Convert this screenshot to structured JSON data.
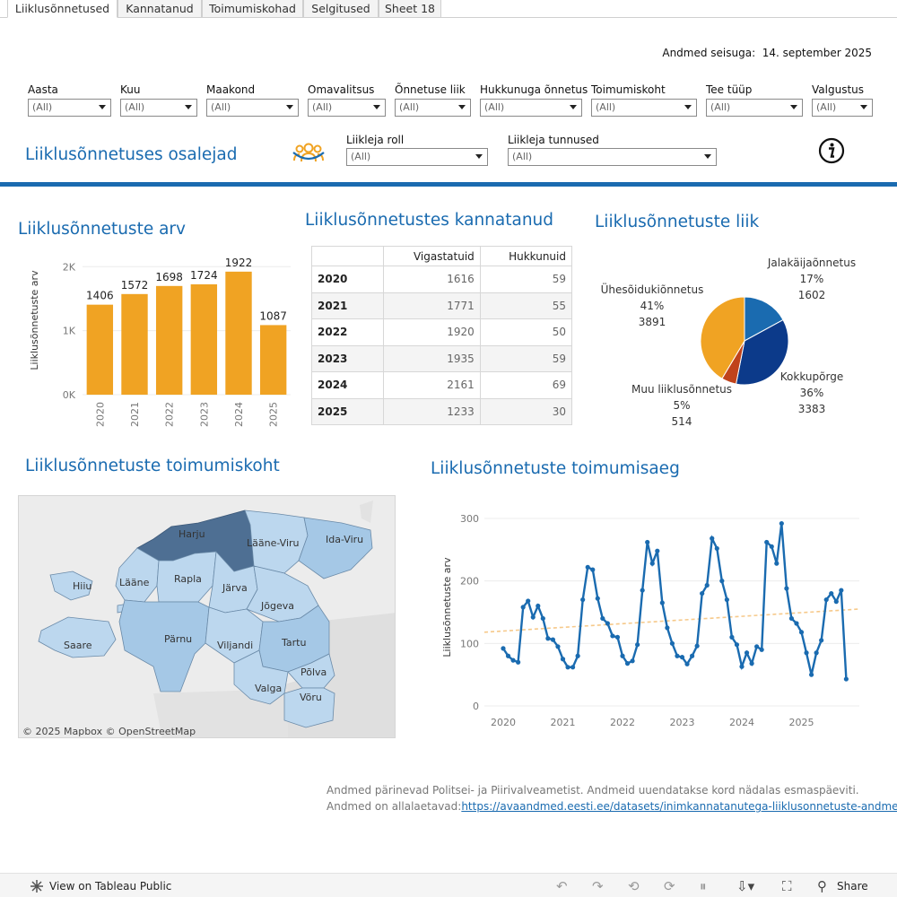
{
  "tabs": [
    "Liiklusõnnetused",
    "Kannatanud",
    "Toimumiskohad",
    "Selgitused",
    "Sheet 18"
  ],
  "stamp": {
    "label": "Andmed seisuga:",
    "date": "14. september 2025"
  },
  "filters": [
    {
      "label": "Aasta",
      "value": "(All)"
    },
    {
      "label": "Kuu",
      "value": "(All)"
    },
    {
      "label": "Maakond",
      "value": "(All)"
    },
    {
      "label": "Omavalitsus",
      "value": "(All)"
    },
    {
      "label": "Õnnetuse liik",
      "value": "(All)"
    },
    {
      "label": "Hukkunuga õnnetus",
      "value": "(All)"
    },
    {
      "label": "Toimumiskoht",
      "value": "(All)"
    },
    {
      "label": "Tee tüüp",
      "value": "(All)"
    },
    {
      "label": "Valgustus",
      "value": "(All)"
    }
  ],
  "participants": {
    "title": "Liiklusõnnetuses osalejad",
    "icon": "people-group-icon",
    "filters": [
      {
        "label": "Liikleja roll",
        "value": "(All)"
      },
      {
        "label": "Liikleja tunnused",
        "value": "(All)"
      }
    ],
    "info_icon": "info-icon"
  },
  "count_chart": {
    "title": "Liiklusõnnetuste arv",
    "chart_data": {
      "type": "bar",
      "categories": [
        "2020",
        "2021",
        "2022",
        "2023",
        "2024",
        "2025"
      ],
      "values": [
        1406,
        1572,
        1698,
        1724,
        1922,
        1087
      ],
      "data_labels": [
        "1406",
        "1572",
        "1698",
        "1724",
        "1922",
        "1087"
      ],
      "ylabel": "Liiklusõnnetuste arv",
      "yticks": [
        "0K",
        "1K",
        "2K"
      ],
      "ylim": [
        0,
        2200
      ],
      "color": "#f0a323"
    }
  },
  "victims": {
    "title": "Liiklusõnnetustes kannatanud",
    "columns": [
      "Vigastatuid",
      "Hukkunuid"
    ],
    "rows": [
      {
        "year": "2020",
        "injured": "1616",
        "killed": "59"
      },
      {
        "year": "2021",
        "injured": "1771",
        "killed": "55"
      },
      {
        "year": "2022",
        "injured": "1920",
        "killed": "50"
      },
      {
        "year": "2023",
        "injured": "1935",
        "killed": "59"
      },
      {
        "year": "2024",
        "injured": "2161",
        "killed": "69"
      },
      {
        "year": "2025",
        "injured": "1233",
        "killed": "30"
      }
    ]
  },
  "type_chart": {
    "title": "Liiklusõnnetuste liik",
    "chart_data": {
      "type": "pie",
      "slices": [
        {
          "name": "Jalakäijaõnnetus",
          "pct": "17%",
          "value": 1602,
          "color": "#1a6bb0"
        },
        {
          "name": "Kokkupõrge",
          "pct": "36%",
          "value": 3383,
          "color": "#0c3a8a"
        },
        {
          "name": "Muu liiklusõnnetus",
          "pct": "5%",
          "value": 514,
          "color": "#c0431b"
        },
        {
          "name": "Ühesõidukiõnnetus",
          "pct": "41%",
          "value": 3891,
          "color": "#f0a323"
        }
      ]
    }
  },
  "map": {
    "title": "Liiklusõnnetuste toimumiskoht",
    "regions": [
      "Harju",
      "Lääne-Viru",
      "Ida-Viru",
      "Hiiu",
      "Lääne",
      "Rapla",
      "Järva",
      "Jõgeva",
      "Saare",
      "Pärnu",
      "Viljandi",
      "Tartu",
      "Põlva",
      "Valga",
      "Võru"
    ],
    "attribution": "© 2025 Mapbox  © OpenStreetMap"
  },
  "time_chart": {
    "title": "Liiklusõnnetuste toimumisaeg",
    "chart_data": {
      "type": "line",
      "ylabel": "Liiklusõnnetuste arv",
      "yticks": [
        "0",
        "100",
        "200",
        "300"
      ],
      "ylim": [
        0,
        310
      ],
      "xticks": [
        "2020",
        "2021",
        "2022",
        "2023",
        "2024",
        "2025"
      ],
      "series": [
        {
          "values": [
            92,
            80,
            73,
            70,
            158,
            168,
            142,
            160,
            140,
            108,
            106,
            95,
            75,
            62,
            62,
            80,
            170,
            222,
            218,
            172,
            140,
            132,
            112,
            110,
            80,
            68,
            72,
            98,
            185,
            262,
            228,
            248,
            165,
            125,
            100,
            80,
            78,
            67,
            80,
            96,
            180,
            193,
            268,
            252,
            200,
            170,
            110,
            98,
            63,
            85,
            68,
            95,
            90,
            262,
            255,
            228,
            292,
            188,
            140,
            132,
            118,
            85,
            50,
            85,
            105,
            170,
            180,
            167,
            185,
            43
          ]
        }
      ],
      "trend": {
        "start": 118,
        "end": 155
      },
      "color": "#1a6bb0",
      "trend_color": "#f6c98a"
    }
  },
  "footer": {
    "line1": "Andmed pärinevad Politsei- ja Piirivalveametist. Andmeid uuendatakse kord nädalas esmaspäeviti.",
    "line2": "Andmed on allalaetavad:",
    "link": "https://avaandmed.eesti.ee/datasets/inimkannatanutega-liiklusonnetuste-andmed"
  },
  "toolbar": {
    "view_label": "View on Tableau Public",
    "share_label": "Share"
  }
}
